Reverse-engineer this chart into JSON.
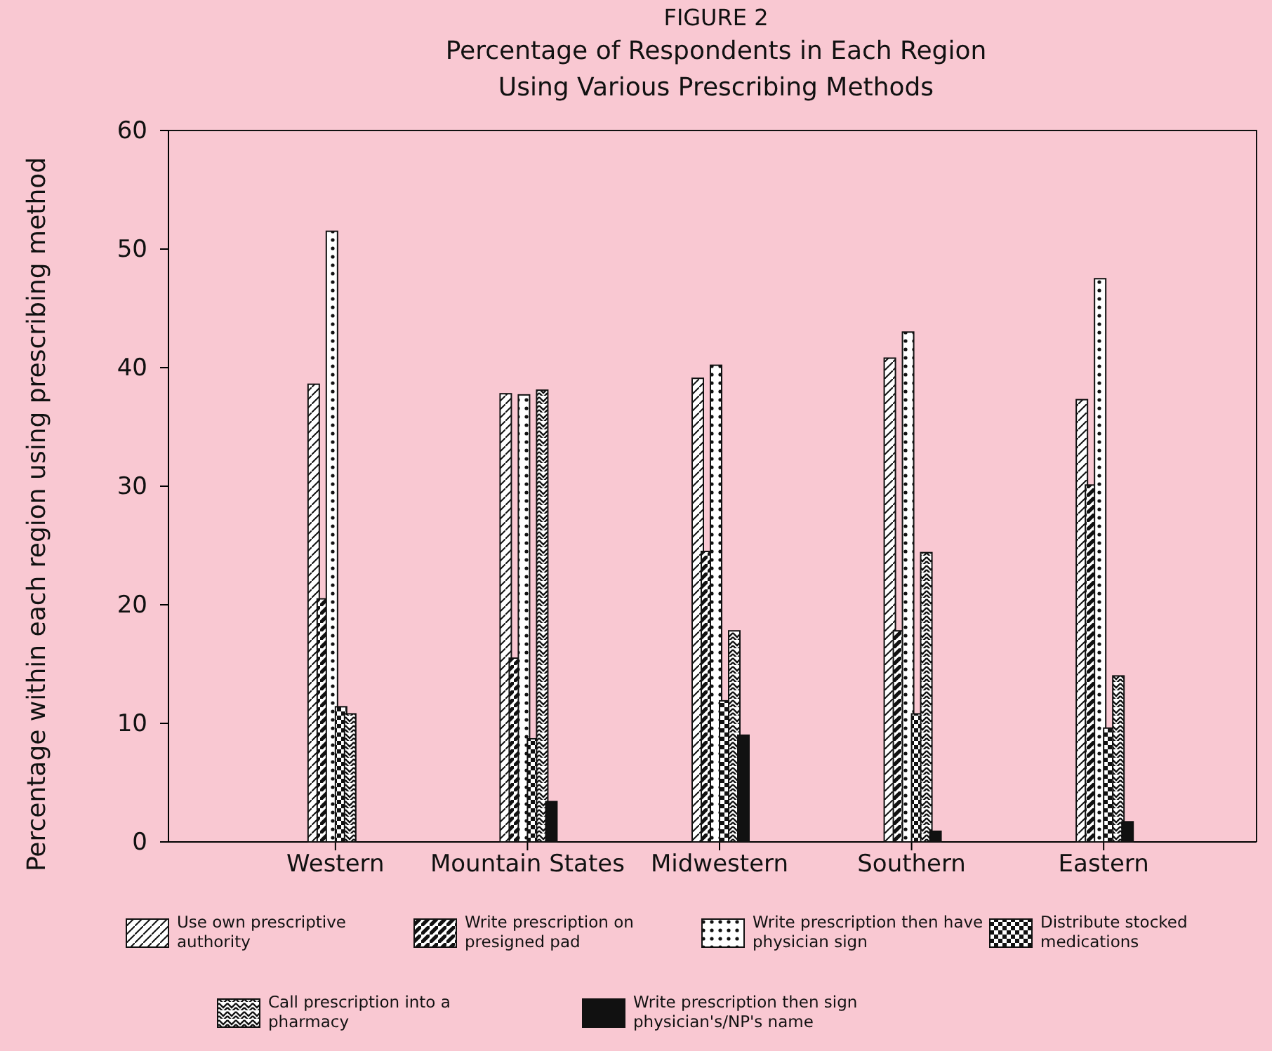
{
  "chart_data": {
    "type": "bar",
    "title": "FIGURE 2",
    "subtitle": "Percentage of Respondents in Each Region Using Various Prescribing Methods",
    "ylabel": "Percentage within each region using prescribing method",
    "categories": [
      "Western",
      "Mountain States",
      "Midwestern",
      "Southern",
      "Eastern"
    ],
    "series": [
      {
        "name": "Use own prescriptive authority",
        "color": "#111111",
        "values": [
          38.6,
          37.8,
          39.1,
          40.8,
          37.3
        ]
      },
      {
        "name": "Write prescription on presigned pad",
        "color": "#111111",
        "values": [
          20.5,
          15.5,
          24.5,
          17.8,
          30.1
        ]
      },
      {
        "name": "Write prescription then have physician sign",
        "color": "#111111",
        "values": [
          51.5,
          37.7,
          40.2,
          43.0,
          47.5
        ]
      },
      {
        "name": "Distribute stocked medications",
        "color": "#111111",
        "values": [
          11.4,
          8.7,
          11.9,
          10.8,
          9.6
        ]
      },
      {
        "name": "Call prescription into a pharmacy",
        "color": "#111111",
        "values": [
          10.8,
          38.1,
          17.8,
          24.4,
          14.0
        ]
      },
      {
        "name": "Write prescription then sign physician's/NP's name",
        "color": "#111111",
        "values": [
          0,
          3.4,
          9.0,
          0.9,
          1.7
        ]
      }
    ],
    "ylim": [
      0,
      60
    ],
    "yticks": [
      0,
      10,
      20,
      30,
      40,
      50,
      60
    ],
    "grid": false,
    "legend": "bottom"
  }
}
